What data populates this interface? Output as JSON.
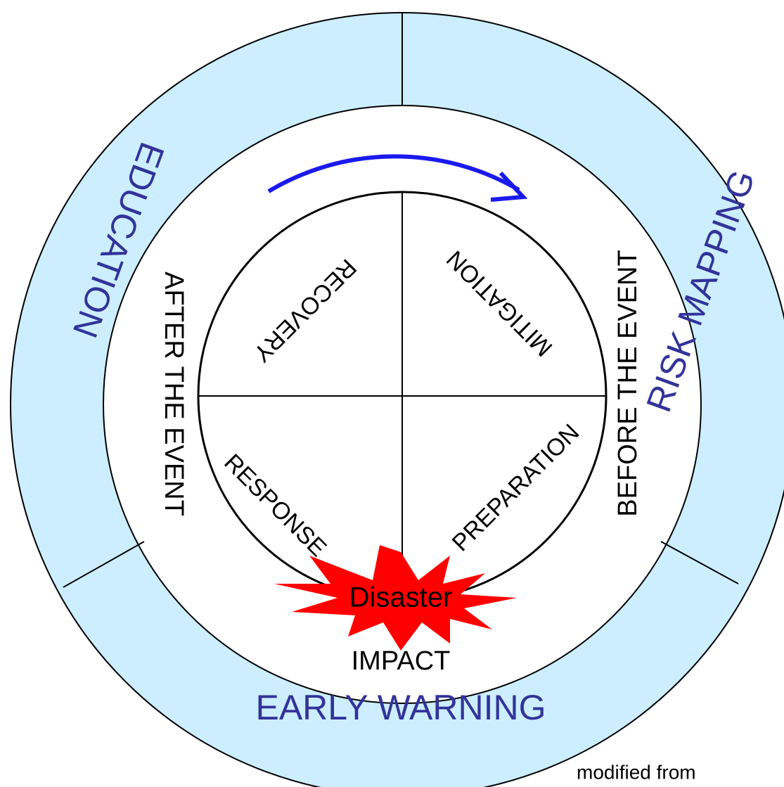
{
  "outer_ring": {
    "left": "EDUCATION",
    "right": "RISK MAPPING",
    "bottom": "EARLY WARNING"
  },
  "middle_ring": {
    "left": "AFTER THE EVENT",
    "right": "BEFORE THE EVENT"
  },
  "phases": {
    "top_left": "RECOVERY",
    "top_right": "MITIGATION",
    "bottom_left": "RESPONSE",
    "bottom_right": "PREPARATION"
  },
  "event": "Disaster",
  "impact": "IMPACT",
  "source_note": "modified from"
}
